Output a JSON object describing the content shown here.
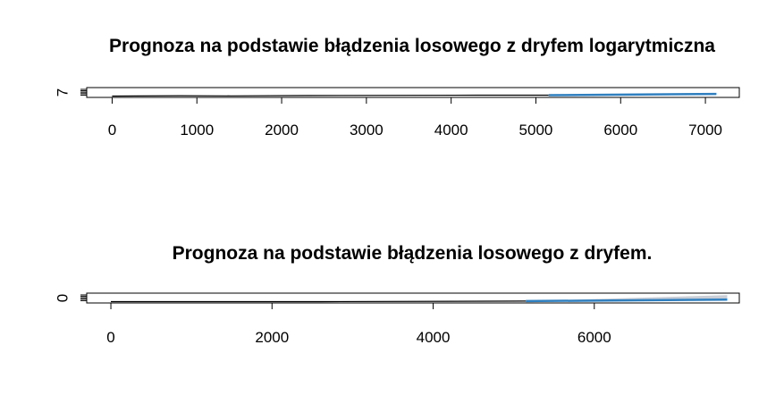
{
  "colors": {
    "history": "#000000",
    "forecast": "#2f7fbf",
    "band": "#c8cdd6"
  },
  "chart_data": [
    {
      "type": "line",
      "title": "Prognoza na podstawie błądzenia losowego z dryfem logarytmiczna",
      "xlabel": "",
      "ylabel": "",
      "xlim": [
        -300,
        7400
      ],
      "xticks": [
        0,
        1000,
        2000,
        3000,
        4000,
        5000,
        6000,
        7000
      ],
      "ytick_labels": [
        "7"
      ],
      "grid": false,
      "legend": "none",
      "series": [
        {
          "role": "history",
          "x": [
            0,
            800,
            1400,
            2300,
            3300,
            4300,
            5150
          ],
          "y": [
            0.0,
            0.05,
            0.02,
            0.08,
            0.1,
            0.12,
            0.12
          ]
        },
        {
          "role": "forecast",
          "x": [
            5150,
            7130
          ],
          "y": [
            0.12,
            0.3
          ]
        }
      ],
      "bands": [
        {
          "x": [
            5150,
            7130
          ],
          "lower": [
            0.12,
            0.24
          ],
          "upper": [
            0.12,
            0.36
          ]
        }
      ]
    },
    {
      "type": "line",
      "title": "Prognoza na podstawie błądzenia losowego z dryfem.",
      "xlabel": "",
      "ylabel": "",
      "xlim": [
        -300,
        7800
      ],
      "xticks": [
        0,
        2000,
        4000,
        6000
      ],
      "ytick_labels": [
        "0"
      ],
      "grid": false,
      "legend": "none",
      "series": [
        {
          "role": "history",
          "x": [
            0,
            2600,
            5150
          ],
          "y": [
            0.0,
            0.0,
            0.08
          ]
        },
        {
          "role": "forecast",
          "x": [
            5150,
            7650
          ],
          "y": [
            0.08,
            0.28
          ]
        }
      ],
      "bands": [
        {
          "x": [
            5150,
            7650
          ],
          "lower": [
            0.08,
            0.18
          ],
          "upper": [
            0.08,
            0.9
          ]
        }
      ]
    }
  ]
}
